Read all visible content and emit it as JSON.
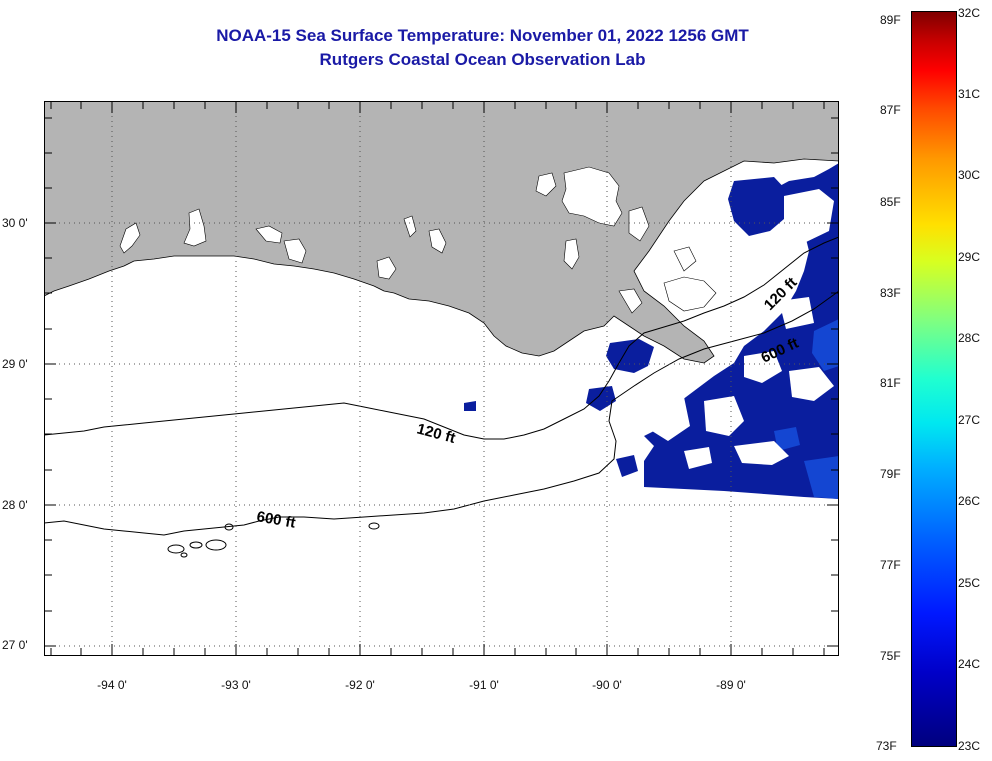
{
  "title": {
    "line1": "NOAA-15 Sea Surface Temperature:  November 01, 2022 1256 GMT",
    "line2": "Rutgers Coastal Ocean Observation Lab"
  },
  "map": {
    "lat_labels": [
      "30 0'",
      "29 0'",
      "28 0'",
      "27 0'"
    ],
    "lon_labels": [
      "-94 0'",
      "-93 0'",
      "-92 0'",
      "-91 0'",
      "-90 0'",
      "-89 0'"
    ],
    "contour_labels": [
      "120 ft",
      "600 ft",
      "120 ft",
      "600 ft"
    ],
    "colors": {
      "land": "#b4b4b4",
      "ocean_nodata": "#ffffff",
      "sst_cold": "#0a1e9e",
      "sst_cool": "#1446d2",
      "title_text": "#1a1aa6"
    },
    "region": "Louisiana / northern Gulf of Mexico coast"
  },
  "colorbar": {
    "fahrenheit_labels": [
      "89F",
      "87F",
      "85F",
      "83F",
      "81F",
      "79F",
      "77F",
      "75F",
      "73F"
    ],
    "celsius_labels": [
      "32C",
      "31C",
      "30C",
      "29C",
      "28C",
      "27C",
      "26C",
      "25C",
      "24C",
      "23C"
    ],
    "range_c": [
      23,
      32
    ],
    "range_f": [
      73,
      89
    ],
    "colormap": "jet"
  }
}
